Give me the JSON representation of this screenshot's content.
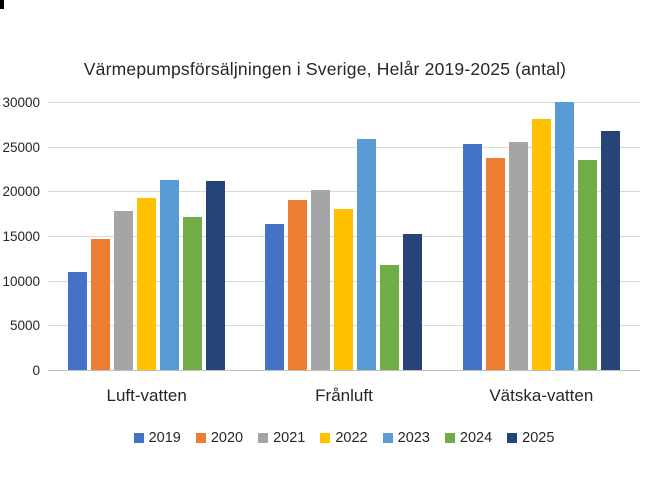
{
  "chart_data": {
    "type": "bar",
    "title": "Värmepumpsförsäljningen i Sverige, Helår 2019-2025 (antal)",
    "categories": [
      "Luft-vatten",
      "Frånluft",
      "Vätska-vatten"
    ],
    "series": [
      {
        "name": "2019",
        "color": "#4472C4",
        "values": [
          11000,
          16400,
          25300
        ]
      },
      {
        "name": "2020",
        "color": "#ED7D31",
        "values": [
          14700,
          19000,
          23700
        ]
      },
      {
        "name": "2021",
        "color": "#A5A5A5",
        "values": [
          17800,
          20200,
          25500
        ]
      },
      {
        "name": "2022",
        "color": "#FFC000",
        "values": [
          19200,
          18000,
          28100
        ]
      },
      {
        "name": "2023",
        "color": "#5B9BD5",
        "values": [
          21300,
          25900,
          30000
        ]
      },
      {
        "name": "2024",
        "color": "#70AD47",
        "values": [
          17100,
          11800,
          23500
        ]
      },
      {
        "name": "2025",
        "color": "#264478",
        "values": [
          21200,
          15200,
          26800
        ]
      }
    ],
    "y_ticks": [
      0,
      5000,
      10000,
      15000,
      20000,
      25000,
      30000
    ],
    "ylim": [
      0,
      30000
    ],
    "grid": true,
    "legend_position": "bottom",
    "gridline_color": "#D9D9D9",
    "axis_line_color": "#BFBFBF",
    "text_color": "#262626"
  }
}
